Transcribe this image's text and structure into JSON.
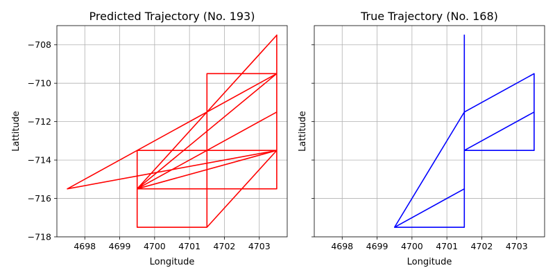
{
  "chart_data": [
    {
      "type": "line",
      "title": "Predicted Trajectory (No. 193)",
      "xlabel": "Longitude",
      "ylabel": "Lattitude",
      "xlim": [
        4697.2,
        4703.8
      ],
      "ylim": [
        -718,
        -707
      ],
      "xticks": [
        4698,
        4699,
        4700,
        4701,
        4702,
        4703
      ],
      "yticks": [
        -718,
        -716,
        -714,
        -712,
        -710,
        -708
      ],
      "grid": true,
      "color": "#ff0000",
      "series": [
        {
          "x": [
            4703.5,
            4699.5,
            4703.5,
            4697.5,
            4703.5,
            4699.5,
            4703.5,
            4699.5,
            4701.5,
            4701.5,
            4699.5,
            4699.5,
            4701.5,
            4701.5,
            4703.5,
            4699.5,
            4701.5,
            4701.5,
            4703.5,
            4701.5,
            4703.5,
            4699.5,
            4701.5,
            4703.5,
            4703.5,
            4699.5,
            4699.5,
            4703.5,
            4699.5,
            4703.5,
            4703.5
          ],
          "y": [
            -707.5,
            -715.5,
            -709.5,
            -715.5,
            -713.5,
            -715.5,
            -711.5,
            -715.5,
            -713.5,
            -717.5,
            -717.5,
            -713.5,
            -713.5,
            -709.5,
            -709.5,
            -715.5,
            -711.5,
            -717.5,
            -713.5,
            -713.5,
            -713.5,
            -713.5,
            -713.5,
            -713.5,
            -715.5,
            -715.5,
            -713.5,
            -713.5,
            -715.5,
            -713.5,
            -707.5
          ]
        }
      ]
    },
    {
      "type": "line",
      "title": "True Trajectory (No. 168)",
      "xlabel": "Longitude",
      "ylabel": "Lattitude",
      "xlim": [
        4697.2,
        4703.8
      ],
      "ylim": [
        -718,
        -707
      ],
      "xticks": [
        4698,
        4699,
        4700,
        4701,
        4702,
        4703
      ],
      "yticks": [],
      "grid": true,
      "color": "#0000ff",
      "series": [
        {
          "x": [
            4701.5,
            4701.5,
            4699.5,
            4701.5,
            4701.5,
            4699.5,
            4701.5,
            4701.5,
            4701.5,
            4703.5,
            4703.5,
            4701.5,
            4701.5,
            4703.5,
            4703.5,
            4701.5,
            4701.5
          ],
          "y": [
            -707.5,
            -717.5,
            -717.5,
            -715.5,
            -717.5,
            -717.5,
            -711.5,
            -711.5,
            -713.5,
            -711.5,
            -709.5,
            -711.5,
            -713.5,
            -711.5,
            -713.5,
            -713.5,
            -707.5
          ]
        }
      ]
    }
  ]
}
